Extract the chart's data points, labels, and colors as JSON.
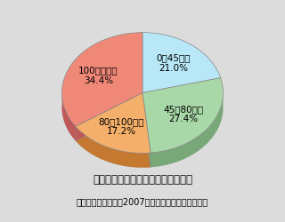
{
  "labels": [
    "0～45時間",
    "45～80時間",
    "80～100時間",
    "100時間以上"
  ],
  "values": [
    21.0,
    27.4,
    17.2,
    34.4
  ],
  "colors": [
    "#b8e8f8",
    "#a8d8a8",
    "#f4b06a",
    "#f08878"
  ],
  "side_colors": [
    "#85b8cc",
    "#78a878",
    "#c47830",
    "#c05858"
  ],
  "label_texts": [
    "0～45時間\n21.0%",
    "45～80時間\n27.4%",
    "80～100時間\n17.2%",
    "100時間以上\n34.4%"
  ],
  "title": "所定外労働時間の分布（建築工事）",
  "source": "（出典　日建協　「2007時短アンケートの概要」）",
  "background_color": "#dcdcdc",
  "startangle": 90,
  "title_fontsize": 8.5,
  "source_fontsize": 7,
  "label_fontsize": 7.5
}
